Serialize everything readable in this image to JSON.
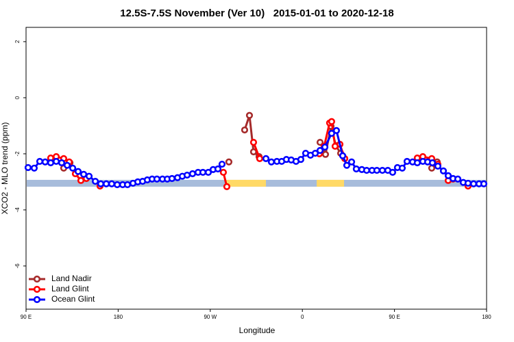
{
  "chart_data": {
    "type": "line",
    "title": "12.5S-7.5S November (Ver 10)   2015-01-01 to 2020-12-18",
    "xlabel": "Longitude",
    "ylabel": "XCO2 - MLO trend (ppm)",
    "xlim": [
      90,
      540
    ],
    "ylim": [
      -7.54,
      2.51
    ],
    "xticks": [
      {
        "value": 90,
        "label": "90 E"
      },
      {
        "value": 180,
        "label": "180"
      },
      {
        "value": 270,
        "label": "90 W"
      },
      {
        "value": 360,
        "label": "0"
      },
      {
        "value": 450,
        "label": "90 E"
      },
      {
        "value": 540,
        "label": "180"
      }
    ],
    "yticks": [
      -6,
      -4,
      -2,
      0,
      2
    ],
    "legend": "bottom-left",
    "surface": {
      "y": -3.05,
      "ocean_color": "#a7bcdb",
      "land_color": "#ffd966",
      "land_spans": [
        [
          285.5,
          324.4
        ],
        [
          374,
          400.7
        ]
      ]
    },
    "series": [
      {
        "name": "Land Nadir",
        "color": "#a52a2a",
        "x": [
          126.8,
          132.9,
          200,
          288.2,
          300,
          303.6,
          308.3,
          312.3,
          317.7,
          340,
          377.3,
          382.6,
          388.0,
          392.7,
          397.4,
          450,
          486.4,
          491.7
        ],
        "values": [
          -2.51,
          -2.32,
          null,
          -2.29,
          null,
          -1.15,
          -0.63,
          -1.93,
          -2.1,
          null,
          -1.59,
          -2.02,
          -1.02,
          -1.71,
          -1.98,
          null,
          -2.51,
          -2.29
        ]
      },
      {
        "name": "Land Glint",
        "color": "#ff0000",
        "x": [
          114.1,
          119.5,
          126.8,
          132.2,
          138.2,
          143.6,
          148.9,
          153,
          162.3,
          200,
          282.8,
          286.2,
          300,
          312.3,
          318.3,
          340,
          376.6,
          381.3,
          386.6,
          388.6,
          392.0,
          396.7,
          401.4,
          450,
          472.3,
          477.7,
          486.4,
          492.4,
          495,
          502.5,
          507.2,
          515,
          521.9
        ],
        "values": [
          -2.15,
          -2.1,
          -2.17,
          -2.29,
          -2.71,
          -2.95,
          -2.88,
          null,
          -3.15,
          null,
          -2.66,
          -3.17,
          null,
          -1.59,
          -2.17,
          null,
          -2.0,
          -1.73,
          -0.9,
          -0.85,
          -1.73,
          -1.66,
          -2.17,
          null,
          -2.15,
          -2.1,
          -2.17,
          -2.37,
          null,
          -2.95,
          -2.9,
          null,
          -3.15
        ]
      },
      {
        "name": "Ocean Glint",
        "color": "#0000ff",
        "x": [
          92.0,
          98.0,
          103.4,
          108.7,
          114.1,
          119.5,
          124.8,
          130.2,
          135.6,
          140.9,
          146.3,
          151.6,
          157.7,
          163.0,
          168.4,
          173.7,
          179.1,
          184.4,
          189.1,
          194.5,
          199.2,
          203.9,
          208.5,
          213.2,
          217.9,
          223.3,
          228.0,
          232.6,
          238.0,
          242.7,
          247.4,
          252.7,
          258.1,
          262.8,
          268.1,
          272.8,
          277.5,
          281.5,
          300,
          324.4,
          329.7,
          335.1,
          339.8,
          344.4,
          349.1,
          353.8,
          358.5,
          363.2,
          367.9,
          372.6,
          377.3,
          382.0,
          388.6,
          393.3,
          399.4,
          403.4,
          408.1,
          412.7,
          418.1,
          422.8,
          428.1,
          432.8,
          438.2,
          443.5,
          448.2,
          452.9,
          457.6,
          462.3,
          467.7,
          472.3,
          477.7,
          482.4,
          487.1,
          492.4,
          497.8,
          502.5,
          507.2,
          511.9,
          517.2,
          521.9,
          527.3,
          532.6,
          537.3
        ],
        "values": [
          -2.49,
          -2.51,
          -2.27,
          -2.29,
          -2.32,
          -2.27,
          -2.32,
          -2.41,
          -2.51,
          -2.63,
          -2.73,
          -2.8,
          -2.98,
          -3.07,
          -3.07,
          -3.07,
          -3.1,
          -3.1,
          -3.1,
          -3.05,
          -3.0,
          -2.98,
          -2.93,
          -2.9,
          -2.9,
          -2.9,
          -2.9,
          -2.88,
          -2.85,
          -2.8,
          -2.76,
          -2.71,
          -2.66,
          -2.66,
          -2.66,
          -2.56,
          -2.54,
          -2.37,
          null,
          -2.17,
          -2.29,
          -2.27,
          -2.27,
          -2.2,
          -2.22,
          -2.27,
          -2.2,
          -1.98,
          -2.05,
          -1.98,
          -1.88,
          -1.76,
          -1.27,
          -1.17,
          -2.07,
          -2.41,
          -2.29,
          -2.54,
          -2.56,
          -2.59,
          -2.59,
          -2.59,
          -2.59,
          -2.59,
          -2.66,
          -2.49,
          -2.51,
          -2.27,
          -2.29,
          -2.32,
          -2.27,
          -2.29,
          -2.32,
          -2.44,
          -2.61,
          -2.78,
          -2.88,
          -2.9,
          -3.02,
          -3.05,
          -3.07,
          -3.07,
          -3.07
        ]
      }
    ]
  }
}
